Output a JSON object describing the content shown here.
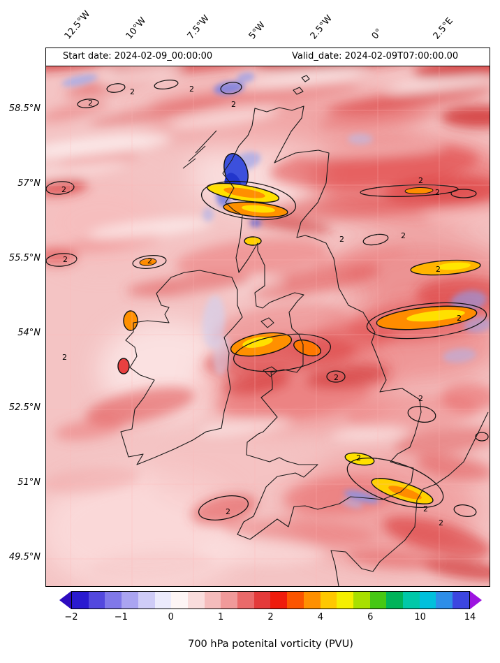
{
  "header": {
    "start_date": "Start date: 2024-02-09_00:00:00",
    "valid_date": "Valid_date: 2024-02-09T07:00:00.00"
  },
  "axes": {
    "x_ticks": [
      "12.5°W",
      "10°W",
      "7.5°W",
      "5°W",
      "2.5°W",
      "0°",
      "2.5°E"
    ],
    "y_ticks": [
      "58.5°N",
      "57°N",
      "55.5°N",
      "54°N",
      "52.5°N",
      "51°N",
      "49.5°N"
    ]
  },
  "colorbar": {
    "tick_labels": [
      "−2",
      "−1",
      "0",
      "1",
      "2",
      "4",
      "6",
      "10",
      "14"
    ],
    "segment_colors": [
      "#2a1ad0",
      "#5348de",
      "#8078e9",
      "#aaa4f1",
      "#cfccf7",
      "#ecebfc",
      "#fdf5f5",
      "#f9dcdc",
      "#f5bcbc",
      "#f09a9a",
      "#ea6a6a",
      "#e43a3a",
      "#ef1c0c",
      "#fb5500",
      "#ff9000",
      "#ffc800",
      "#f5ef00",
      "#a8e000",
      "#46c814",
      "#00b45a",
      "#00c8a8",
      "#00c0dc",
      "#2e8ee8",
      "#3c46e0"
    ],
    "left_arrow_color": "#2d0bbf",
    "right_arrow_color": "#9c14e0"
  },
  "caption": "700 hPa potenital vorticity (PVU)",
  "map": {
    "contour_label": "2"
  },
  "chart_data": {
    "type": "heatmap",
    "title": "700 hPa potenital vorticity (PVU)",
    "start_date": "Start date: 2024-02-09_00:00:00",
    "valid_date": "Valid_date: 2024-02-09T07:00:00.00",
    "variable": "700 hPa potential vorticity",
    "units": "PVU",
    "region": "British Isles (Ireland, Great Britain, English Channel)",
    "x_axis": {
      "label": "longitude",
      "ticks": [
        "12.5°W",
        "10°W",
        "7.5°W",
        "5°W",
        "2.5°W",
        "0°",
        "2.5°E"
      ],
      "range_deg_east": [
        -13.5,
        4.5
      ]
    },
    "y_axis": {
      "label": "latitude",
      "ticks": [
        "58.5°N",
        "57°N",
        "55.5°N",
        "54°N",
        "52.5°N",
        "51°N",
        "49.5°N"
      ],
      "range_deg_north": [
        49.0,
        59.8
      ]
    },
    "colorbar_levels": [
      -2,
      -1,
      0,
      1,
      2,
      4,
      6,
      10,
      14
    ],
    "colorbar_extend": "both",
    "contour_level_labeled": 2,
    "field_summary": [
      "Background PV mostly 0.5-2 PVU (pink to red shading) across the whole domain",
      "Band of PV maxima 4-6 PVU (yellow/orange) with embedded negative PV (blue) over western Scotland near 57°N 5°W",
      "Elongated 2 PVU contour with orange core east of Scotland along 57°N from 2.5°W to 2.5°E",
      "Elongated yellow/orange maximum near 55.5°N 2°E and over northeast England near 54°N 0-2.5°E",
      "Cluster of 2-6 PVU maxima over central England and the Irish Sea near 54°N 3°W",
      "Yellow maximum 4-6 PVU over the English Channel / Dover Strait near 51°N 0-1°E",
      "Closed 2 PVU contour southwest of Cornwall near 50.7°N 7°W",
      "Small closed 2 PVU contours along 58.5°N, at 57°N 12.5°W, and near 52.5°N 1°E",
      "Scattered weak negative PV (light blue) patches along the North Sea edge near 0-2.5°E"
    ]
  }
}
